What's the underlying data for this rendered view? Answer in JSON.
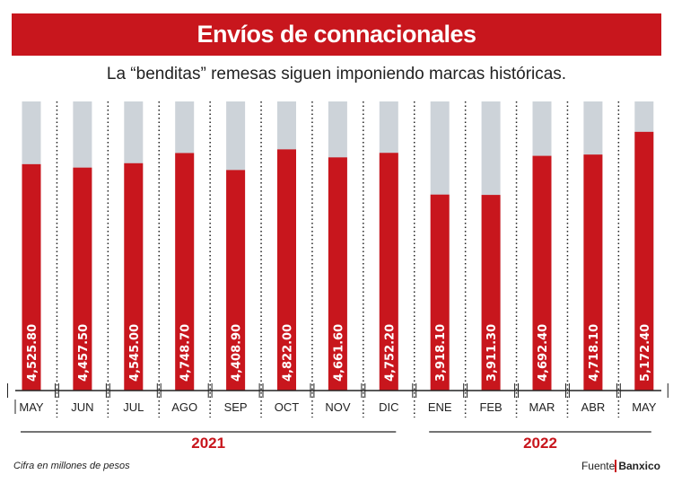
{
  "header": {
    "title": "Envíos de connacionales",
    "subtitle": "La “benditas” remesas siguen imponiendo marcas históricas."
  },
  "footer": {
    "note": "Cifra en millones de pesos",
    "source_label": "Fuente",
    "source_name": "Banxico"
  },
  "chart_data": {
    "type": "bar",
    "categories": [
      "MAY",
      "JUN",
      "JUL",
      "AGO",
      "SEP",
      "OCT",
      "NOV",
      "DIC",
      "ENE",
      "FEB",
      "MAR",
      "ABR",
      "MAY"
    ],
    "values": [
      4525.8,
      4457.5,
      4545.0,
      4748.7,
      4408.9,
      4822.0,
      4661.6,
      4752.2,
      3918.1,
      3911.3,
      4692.4,
      4718.1,
      5172.4
    ],
    "data_labels": [
      "4,525.80",
      "4,457.50",
      "4,545.00",
      "4,748.70",
      "4,408.90",
      "4,822.00",
      "4,661.60",
      "4,752.20",
      "3,918.10",
      "3,911.30",
      "4,692.40",
      "4,718.10",
      "5,172.40"
    ],
    "year_groups": [
      {
        "label": "2021",
        "from": 0,
        "to": 7
      },
      {
        "label": "2022",
        "from": 8,
        "to": 12
      }
    ],
    "ylim": [
      0,
      5780
    ],
    "colors": {
      "bar": "#c8161d",
      "background_bar": "#cdd3d9"
    }
  }
}
